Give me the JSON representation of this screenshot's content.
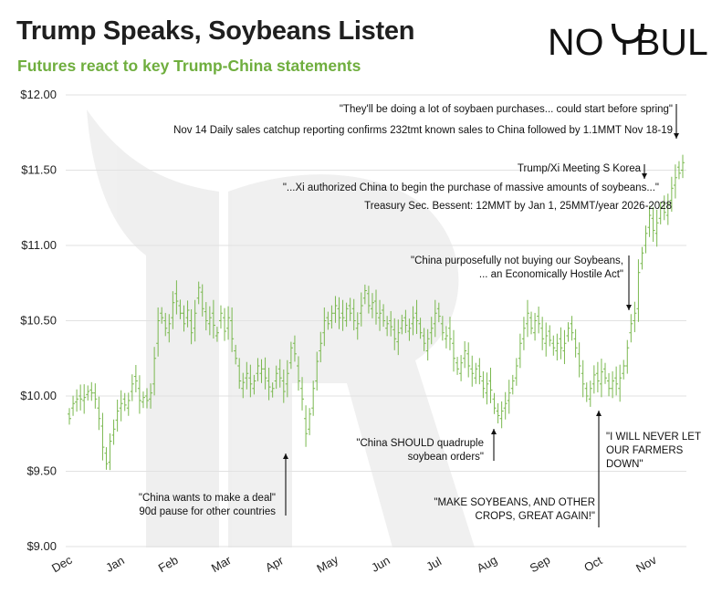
{
  "header": {
    "title": "Trump Speaks, Soybeans Listen",
    "subtitle": "Futures react to key Trump-China statements",
    "logo_text": "NO BULL"
  },
  "colors": {
    "accent": "#6fae3e",
    "price_bar": "#7ab84f",
    "text": "#1f1f1f"
  },
  "chart_data": {
    "type": "ohlc",
    "title": "Trump Speaks, Soybeans Listen",
    "subtitle": "Futures react to key Trump-China statements",
    "xlabel": "",
    "ylabel": "",
    "ylim": [
      9.0,
      12.0
    ],
    "grid": "horizontal",
    "y_ticks": [
      9.0,
      9.5,
      10.0,
      10.5,
      11.0,
      11.5,
      12.0
    ],
    "y_tick_labels": [
      "$9.00",
      "$9.50",
      "$10.00",
      "$10.50",
      "$11.00",
      "$11.50",
      "$12.00"
    ],
    "x_tick_labels": [
      "Dec",
      "Jan",
      "Feb",
      "Mar",
      "Apr",
      "May",
      "Jun",
      "Jul",
      "Aug",
      "Sep",
      "Oct",
      "Nov"
    ],
    "series": [
      {
        "values": [
          [
            9.88,
            9.85
          ],
          [
            9.92,
            9.95
          ],
          [
            9.96,
            9.98
          ],
          [
            10.0,
            9.98
          ],
          [
            9.97,
            9.99
          ],
          [
            10.01,
            10.03
          ],
          [
            10.04,
            10.02
          ],
          [
            10.02,
            9.98
          ],
          [
            9.92,
            9.85
          ],
          [
            9.8,
            9.66
          ],
          [
            9.62,
            9.55
          ],
          [
            9.56,
            9.7
          ],
          [
            9.74,
            9.78
          ],
          [
            9.84,
            9.9
          ],
          [
            9.92,
            9.95
          ],
          [
            9.98,
            9.94
          ],
          [
            9.92,
            9.97
          ],
          [
            10.03,
            10.08
          ],
          [
            10.13,
            10.1
          ],
          [
            10.05,
            9.97
          ],
          [
            9.96,
            9.99
          ],
          [
            10.0,
            9.97
          ],
          [
            9.98,
            10.02
          ],
          [
            10.08,
            10.25
          ],
          [
            10.35,
            10.5
          ],
          [
            10.55,
            10.52
          ],
          [
            10.5,
            10.45
          ],
          [
            10.42,
            10.48
          ],
          [
            10.52,
            10.62
          ],
          [
            10.68,
            10.63
          ],
          [
            10.6,
            10.55
          ],
          [
            10.55,
            10.48
          ],
          [
            10.52,
            10.57
          ],
          [
            10.5,
            10.42
          ],
          [
            10.45,
            10.55
          ],
          [
            10.65,
            10.72
          ],
          [
            10.69,
            10.58
          ],
          [
            10.56,
            10.5
          ],
          [
            10.48,
            10.52
          ],
          [
            10.55,
            10.47
          ],
          [
            10.4,
            10.42
          ],
          [
            10.5,
            10.55
          ],
          [
            10.52,
            10.43
          ],
          [
            10.45,
            10.52
          ],
          [
            10.5,
            10.38
          ],
          [
            10.3,
            10.25
          ],
          [
            10.2,
            10.1
          ],
          [
            10.05,
            10.09
          ],
          [
            10.12,
            10.15
          ],
          [
            10.12,
            10.08
          ],
          [
            10.05,
            10.1
          ],
          [
            10.15,
            10.2
          ],
          [
            10.15,
            10.18
          ],
          [
            10.18,
            10.12
          ],
          [
            10.1,
            10.06
          ],
          [
            10.03,
            10.05
          ],
          [
            10.1,
            10.15
          ],
          [
            10.18,
            10.12
          ],
          [
            10.1,
            10.03
          ],
          [
            10.08,
            10.15
          ],
          [
            10.22,
            10.32
          ],
          [
            10.35,
            10.28
          ],
          [
            10.2,
            10.1
          ],
          [
            10.05,
            9.98
          ],
          [
            9.85,
            9.75
          ],
          [
            9.78,
            9.88
          ],
          [
            9.92,
            10.05
          ],
          [
            10.1,
            10.23
          ],
          [
            10.3,
            10.35
          ],
          [
            10.42,
            10.5
          ],
          [
            10.52,
            10.48
          ],
          [
            10.5,
            10.55
          ],
          [
            10.55,
            10.6
          ],
          [
            10.58,
            10.52
          ],
          [
            10.55,
            10.52
          ],
          [
            10.5,
            10.58
          ],
          [
            10.6,
            10.55
          ],
          [
            10.58,
            10.5
          ],
          [
            10.45,
            10.48
          ],
          [
            10.55,
            10.6
          ],
          [
            10.65,
            10.7
          ],
          [
            10.68,
            10.6
          ],
          [
            10.58,
            10.62
          ],
          [
            10.63,
            10.55
          ],
          [
            10.52,
            10.55
          ],
          [
            10.57,
            10.5
          ],
          [
            10.45,
            10.48
          ],
          [
            10.5,
            10.46
          ],
          [
            10.44,
            10.38
          ],
          [
            10.36,
            10.42
          ],
          [
            10.45,
            10.5
          ],
          [
            10.52,
            10.47
          ],
          [
            10.43,
            10.45
          ],
          [
            10.48,
            10.52
          ],
          [
            10.55,
            10.5
          ],
          [
            10.48,
            10.42
          ],
          [
            10.4,
            10.35
          ],
          [
            10.3,
            10.38
          ],
          [
            10.42,
            10.45
          ],
          [
            10.48,
            10.55
          ],
          [
            10.58,
            10.53
          ],
          [
            10.48,
            10.42
          ],
          [
            10.38,
            10.4
          ],
          [
            10.45,
            10.38
          ],
          [
            10.35,
            10.25
          ],
          [
            10.22,
            10.18
          ],
          [
            10.15,
            10.22
          ],
          [
            10.25,
            10.3
          ],
          [
            10.28,
            10.2
          ],
          [
            10.18,
            10.15
          ],
          [
            10.12,
            10.18
          ],
          [
            10.2,
            10.13
          ],
          [
            10.1,
            10.05
          ],
          [
            10.02,
            10.08
          ],
          [
            10.1,
            10.04
          ],
          [
            9.98,
            9.92
          ],
          [
            9.9,
            9.87
          ],
          [
            9.85,
            9.9
          ],
          [
            9.92,
            9.95
          ],
          [
            9.97,
            10.02
          ],
          [
            10.05,
            10.1
          ],
          [
            10.12,
            10.2
          ],
          [
            10.25,
            10.35
          ],
          [
            10.38,
            10.45
          ],
          [
            10.48,
            10.55
          ],
          [
            10.52,
            10.45
          ],
          [
            10.42,
            10.5
          ],
          [
            10.53,
            10.48
          ],
          [
            10.45,
            10.38
          ],
          [
            10.35,
            10.4
          ],
          [
            10.43,
            10.37
          ],
          [
            10.35,
            10.32
          ],
          [
            10.3,
            10.35
          ],
          [
            10.38,
            10.32
          ],
          [
            10.3,
            10.35
          ],
          [
            10.4,
            10.45
          ],
          [
            10.48,
            10.42
          ],
          [
            10.38,
            10.32
          ],
          [
            10.28,
            10.2
          ],
          [
            10.15,
            10.08
          ],
          [
            10.05,
            10.0
          ],
          [
            9.98,
            10.05
          ],
          [
            10.08,
            10.14
          ],
          [
            10.15,
            10.1
          ],
          [
            10.08,
            10.16
          ],
          [
            10.18,
            10.12
          ],
          [
            10.1,
            10.05
          ],
          [
            10.05,
            10.1
          ],
          [
            10.12,
            10.08
          ],
          [
            10.05,
            10.12
          ],
          [
            10.15,
            10.2
          ],
          [
            10.2,
            10.32
          ],
          [
            10.42,
            10.48
          ],
          [
            10.5,
            10.55
          ],
          [
            10.58,
            10.82
          ],
          [
            10.88,
            10.95
          ],
          [
            11.0,
            11.08
          ],
          [
            11.12,
            11.2
          ],
          [
            11.18,
            11.1
          ],
          [
            11.08,
            11.15
          ],
          [
            11.18,
            11.25
          ],
          [
            11.28,
            11.22
          ],
          [
            11.2,
            11.28
          ],
          [
            11.3,
            11.38
          ],
          [
            11.4,
            11.45
          ],
          [
            11.52,
            11.48
          ],
          [
            11.5,
            11.55
          ]
        ]
      }
    ],
    "annotations": [
      {
        "lines": [
          "\"They'll be doing a lot of soybaen purchases... could start before spring\""
        ]
      },
      {
        "lines": [
          "Nov 14 Daily sales catchup reporting confirms 232tmt known sales to China followed by 1.1MMT Nov 18-19"
        ]
      },
      {
        "lines": [
          "Trump/Xi Meeting S Korea"
        ]
      },
      {
        "lines": [
          "\"...Xi authorized China to begin the purchase of massive amounts of soybeans...\""
        ]
      },
      {
        "lines": [
          "Treasury Sec. Bessent: 12MMT by Jan 1, 25MMT/year 2026-2028"
        ]
      },
      {
        "lines": [
          "\"China purposefully not buying our Soybeans,",
          "... an Economically Hostile Act\""
        ]
      },
      {
        "lines": [
          "\"China SHOULD quadruple",
          "soybean orders\""
        ]
      },
      {
        "lines": [
          "\"I WILL NEVER LET",
          "OUR FARMERS",
          "DOWN\""
        ]
      },
      {
        "lines": [
          "\"China wants to make a deal\"",
          "90d pause for other countries"
        ]
      },
      {
        "lines": [
          "\"MAKE SOYBEANS, AND OTHER",
          "CROPS, GREAT AGAIN!\""
        ]
      }
    ]
  }
}
